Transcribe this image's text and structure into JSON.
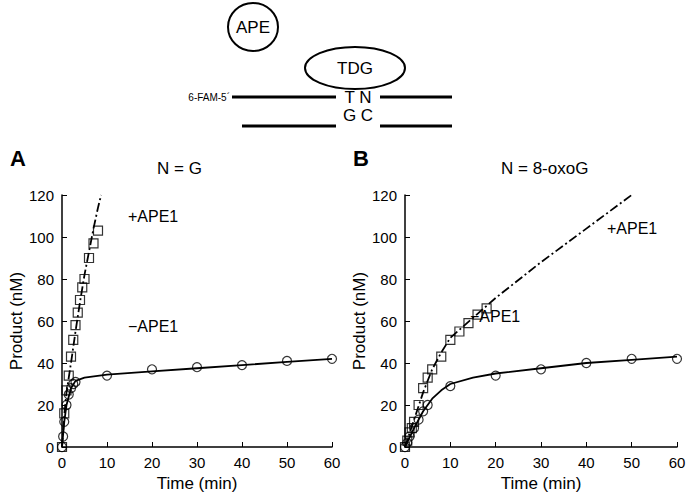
{
  "diagram": {
    "enzymes": [
      "APE",
      "TDG"
    ],
    "strand_label": "6-FAM-5´",
    "top_bases": "T N",
    "bottom_bases": "G C"
  },
  "chart_data": [
    {
      "type": "scatter",
      "panel_label": "A",
      "title": "N = G",
      "x_label": "Time (min)",
      "y_label": "Product (nM)",
      "xlim": [
        0,
        60
      ],
      "xticks": [
        0,
        10,
        20,
        30,
        40,
        50,
        60
      ],
      "ylim": [
        0,
        120
      ],
      "yticks": [
        0,
        20,
        40,
        60,
        80,
        100,
        120
      ],
      "grid": false,
      "series": [
        {
          "name": "+APE1",
          "color": "#000000",
          "marker": "square",
          "line_style": "dashdot",
          "x": [
            0,
            0.5,
            1,
            1.5,
            2,
            2.5,
            3,
            3.5,
            4,
            4.5,
            5,
            6,
            7,
            8
          ],
          "values": [
            0,
            16,
            27,
            34,
            43,
            51,
            58,
            64,
            70,
            76,
            80,
            90,
            97,
            103
          ],
          "fit_x": [
            0,
            0.5,
            1,
            2,
            3,
            4,
            5,
            6,
            7,
            8,
            8.7
          ],
          "fit_values": [
            0,
            15,
            26,
            40,
            55,
            69,
            82,
            93,
            104,
            114,
            120
          ]
        },
        {
          "name": "−APE1",
          "color": "#000000",
          "marker": "circle",
          "line_style": "solid",
          "x": [
            0,
            0.25,
            0.5,
            1,
            1.5,
            2,
            2.5,
            3,
            10,
            20,
            30,
            40,
            50,
            60
          ],
          "values": [
            0,
            5,
            12,
            20,
            25,
            28,
            30,
            31,
            34,
            37,
            38,
            39,
            41,
            42
          ],
          "fit_x": [
            0,
            0.5,
            1,
            2,
            3,
            5,
            10,
            20,
            30,
            40,
            50,
            60
          ],
          "fit_values": [
            0,
            12,
            20,
            28,
            31.5,
            33,
            34.5,
            36,
            37.5,
            39,
            40.5,
            42
          ]
        }
      ]
    },
    {
      "type": "scatter",
      "panel_label": "B",
      "title": "N = 8-oxoG",
      "x_label": "Time (min)",
      "y_label": "Product (nM)",
      "xlim": [
        0,
        60
      ],
      "xticks": [
        0,
        10,
        20,
        30,
        40,
        50,
        60
      ],
      "ylim": [
        0,
        120
      ],
      "yticks": [
        0,
        20,
        40,
        60,
        80,
        100,
        120
      ],
      "grid": false,
      "series": [
        {
          "name": "+APE1",
          "color": "#000000",
          "marker": "square",
          "line_style": "dashdot",
          "x": [
            0,
            0.5,
            1,
            1.5,
            2,
            3,
            4,
            5,
            6,
            8,
            10,
            12,
            14,
            16,
            18
          ],
          "values": [
            0,
            3,
            7,
            9,
            12,
            20,
            28,
            33,
            37,
            43,
            51,
            55,
            59,
            63,
            66
          ],
          "fit_x": [
            0,
            2,
            4,
            6,
            8,
            10,
            20,
            30,
            40,
            50
          ],
          "fit_values": [
            0,
            13,
            26,
            37,
            45,
            52,
            71,
            88,
            104,
            120
          ]
        },
        {
          "name": "−APE1",
          "color": "#000000",
          "marker": "circle",
          "line_style": "solid",
          "x": [
            0,
            0.5,
            1,
            2,
            3,
            4,
            5,
            10,
            20,
            30,
            40,
            50,
            60
          ],
          "values": [
            0,
            2,
            5,
            9,
            13,
            17,
            20,
            29,
            34,
            37,
            40,
            42,
            42
          ],
          "fit_x": [
            0,
            2,
            4,
            6,
            8,
            10,
            15,
            20,
            30,
            40,
            50,
            60
          ],
          "fit_values": [
            0,
            9,
            17,
            23,
            27,
            30,
            33,
            35,
            37.5,
            40,
            41.5,
            43
          ]
        }
      ]
    }
  ]
}
